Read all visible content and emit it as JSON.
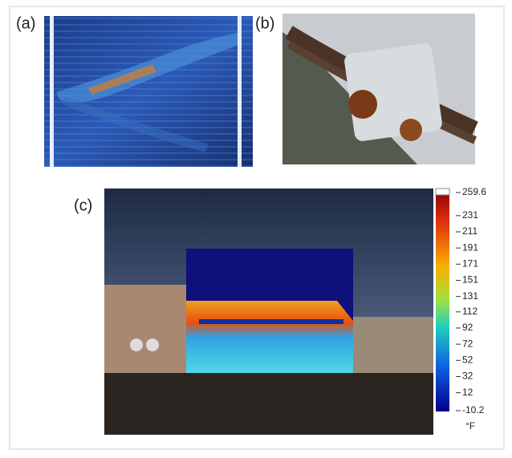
{
  "panels": [
    {
      "label": "(a)"
    },
    {
      "label": "(b)"
    },
    {
      "label": "(c)"
    }
  ],
  "colorbar": {
    "ticks": [
      259.6,
      231,
      211,
      191,
      171,
      151,
      131,
      112,
      92,
      72,
      52,
      32,
      12,
      -10.2
    ],
    "unit": "°F"
  }
}
